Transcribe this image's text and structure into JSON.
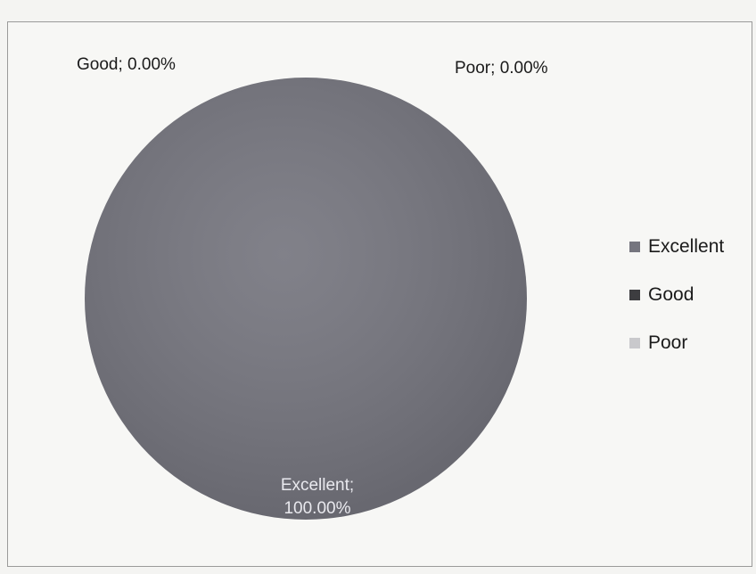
{
  "chart_data": {
    "type": "pie",
    "categories": [
      "Excellent",
      "Good",
      "Poor"
    ],
    "values": [
      100.0,
      0.0,
      0.0
    ],
    "data_labels": [
      "Excellent; 100.00%",
      "Good; 0.00%",
      "Poor; 0.00%"
    ],
    "data_label_parts": {
      "excellent_line1": "Excellent;",
      "excellent_line2": "100.00%",
      "good": "Good; 0.00%",
      "poor": "Poor; 0.00%"
    },
    "colors": [
      "#76767f",
      "#3d3d40",
      "#c9c9cc"
    ],
    "legend": {
      "position": "right",
      "entries": [
        "Excellent",
        "Good",
        "Poor"
      ]
    }
  }
}
